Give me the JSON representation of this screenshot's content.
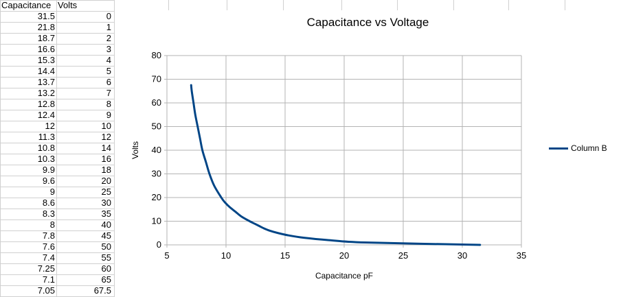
{
  "spreadsheet": {
    "headers": [
      "Capacitance",
      "Volts"
    ],
    "rows": [
      [
        "31.5",
        "0"
      ],
      [
        "21.8",
        "1"
      ],
      [
        "18.7",
        "2"
      ],
      [
        "16.6",
        "3"
      ],
      [
        "15.3",
        "4"
      ],
      [
        "14.4",
        "5"
      ],
      [
        "13.7",
        "6"
      ],
      [
        "13.2",
        "7"
      ],
      [
        "12.8",
        "8"
      ],
      [
        "12.4",
        "9"
      ],
      [
        "12",
        "10"
      ],
      [
        "11.3",
        "12"
      ],
      [
        "10.8",
        "14"
      ],
      [
        "10.3",
        "16"
      ],
      [
        "9.9",
        "18"
      ],
      [
        "9.6",
        "20"
      ],
      [
        "9",
        "25"
      ],
      [
        "8.6",
        "30"
      ],
      [
        "8.3",
        "35"
      ],
      [
        "8",
        "40"
      ],
      [
        "7.8",
        "45"
      ],
      [
        "7.6",
        "50"
      ],
      [
        "7.4",
        "55"
      ],
      [
        "7.25",
        "60"
      ],
      [
        "7.1",
        "65"
      ],
      [
        "7.05",
        "67.5"
      ]
    ]
  },
  "chart_data": {
    "type": "line",
    "title": "Capacitance vs Voltage",
    "xlabel": "Capacitance pF",
    "ylabel": "Volts",
    "xlim": [
      5,
      35
    ],
    "ylim": [
      0,
      80
    ],
    "xticks": [
      5,
      10,
      15,
      20,
      25,
      30,
      35
    ],
    "yticks": [
      0,
      10,
      20,
      30,
      40,
      50,
      60,
      70,
      80
    ],
    "grid": true,
    "legend_position": "right",
    "series": [
      {
        "name": "Column B",
        "color": "#004586",
        "x": [
          31.5,
          21.8,
          18.7,
          16.6,
          15.3,
          14.4,
          13.7,
          13.2,
          12.8,
          12.4,
          12,
          11.3,
          10.8,
          10.3,
          9.9,
          9.6,
          9,
          8.6,
          8.3,
          8,
          7.8,
          7.6,
          7.4,
          7.25,
          7.1,
          7.05
        ],
        "y": [
          0,
          1,
          2,
          3,
          4,
          5,
          6,
          7,
          8,
          9,
          10,
          12,
          14,
          16,
          18,
          20,
          25,
          30,
          35,
          40,
          45,
          50,
          55,
          60,
          65,
          67.5
        ]
      }
    ]
  }
}
